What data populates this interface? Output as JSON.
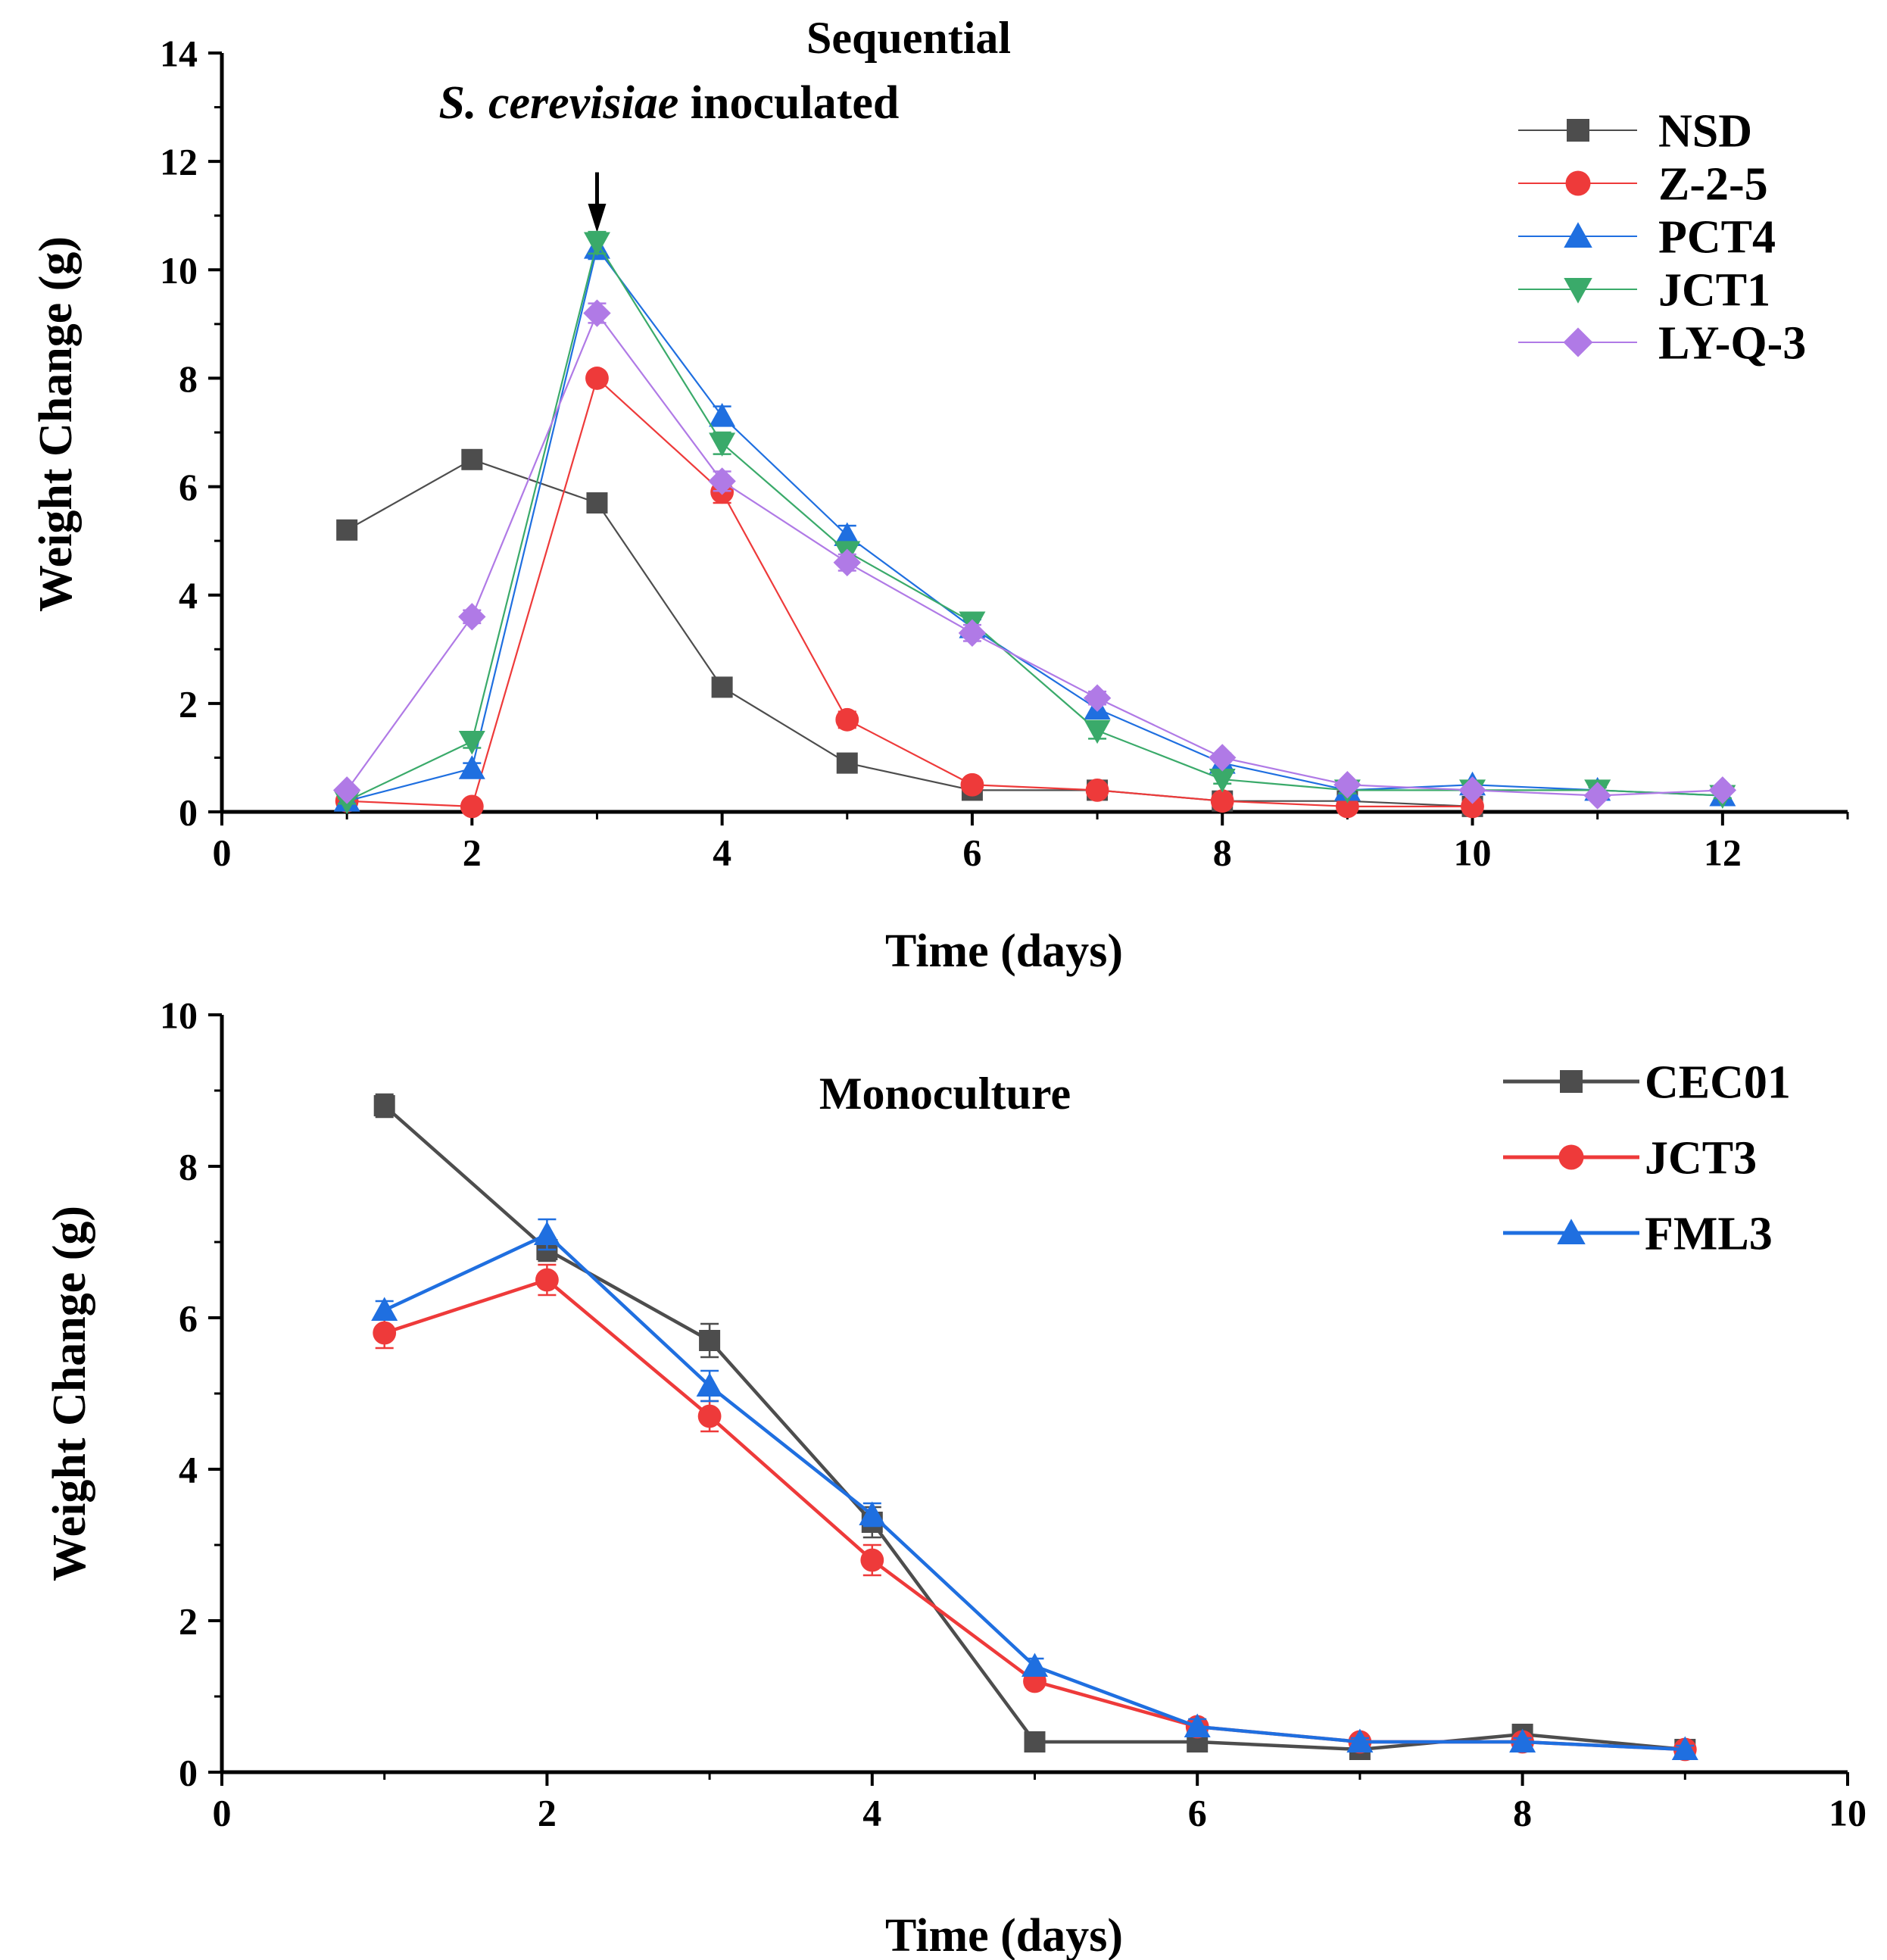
{
  "chart_data": [
    {
      "type": "line",
      "title": "Sequential",
      "xlabel": "Time (days)",
      "ylabel": "Weight Change (g)",
      "xlim": [
        0,
        13
      ],
      "ylim": [
        0,
        14
      ],
      "xticks": [
        0,
        2,
        4,
        6,
        8,
        10,
        12
      ],
      "yticks": [
        0,
        2,
        4,
        6,
        8,
        10,
        12,
        14
      ],
      "legend_position": "top-right",
      "annotation": {
        "italic_text": "S. cerevisiae",
        "text": " inoculated",
        "x": 3,
        "y_text": 12.8,
        "arrow_from": 11.8,
        "arrow_to": 10.8
      },
      "series": [
        {
          "name": "NSD",
          "color": "#4d4d4d",
          "marker": "square",
          "x": [
            1,
            2,
            3,
            4,
            5,
            6,
            7,
            8,
            9,
            10
          ],
          "y": [
            5.2,
            6.5,
            5.7,
            2.3,
            0.9,
            0.4,
            0.4,
            0.2,
            0.2,
            0.1
          ],
          "err": [
            0.1,
            0.12,
            0.12,
            0.12,
            0.08,
            0.06,
            0.06,
            0.04,
            0.04,
            0.03
          ]
        },
        {
          "name": "Z-2-5",
          "color": "#ee3a3a",
          "marker": "circle",
          "x": [
            1,
            2,
            3,
            4,
            5,
            6,
            7,
            8,
            9,
            10
          ],
          "y": [
            0.2,
            0.1,
            8.0,
            5.9,
            1.7,
            0.5,
            0.4,
            0.2,
            0.1,
            0.1
          ],
          "err": [
            0.05,
            0.05,
            0.12,
            0.2,
            0.15,
            0.1,
            0.06,
            0.05,
            0.04,
            0.03
          ]
        },
        {
          "name": "PCT4",
          "color": "#1f6fe0",
          "marker": "triangle-up",
          "x": [
            1,
            2,
            3,
            4,
            5,
            6,
            7,
            8,
            9,
            10,
            11,
            12
          ],
          "y": [
            0.2,
            0.8,
            10.4,
            7.3,
            5.1,
            3.4,
            1.9,
            0.9,
            0.4,
            0.5,
            0.4,
            0.3
          ],
          "err": [
            0.05,
            0.1,
            0.2,
            0.18,
            0.18,
            0.15,
            0.12,
            0.08,
            0.06,
            0.06,
            0.05,
            0.05
          ]
        },
        {
          "name": "JCT1",
          "color": "#3aaa6a",
          "marker": "triangle-down",
          "x": [
            1,
            2,
            3,
            4,
            5,
            6,
            7,
            8,
            9,
            10,
            11,
            12
          ],
          "y": [
            0.2,
            1.3,
            10.5,
            6.8,
            4.8,
            3.5,
            1.5,
            0.6,
            0.4,
            0.4,
            0.4,
            0.3
          ],
          "err": [
            0.05,
            0.12,
            0.2,
            0.2,
            0.18,
            0.15,
            0.15,
            0.08,
            0.06,
            0.05,
            0.05,
            0.05
          ]
        },
        {
          "name": "LY-Q-3",
          "color": "#b07ae6",
          "marker": "diamond",
          "x": [
            1,
            2,
            3,
            4,
            5,
            6,
            7,
            8,
            9,
            10,
            11,
            12
          ],
          "y": [
            0.4,
            3.6,
            9.2,
            6.1,
            4.6,
            3.3,
            2.1,
            1.0,
            0.5,
            0.4,
            0.3,
            0.4
          ],
          "err": [
            0.05,
            0.12,
            0.18,
            0.18,
            0.15,
            0.15,
            0.12,
            0.08,
            0.06,
            0.05,
            0.05,
            0.05
          ]
        }
      ]
    },
    {
      "type": "line",
      "title": "Monoculture",
      "xlabel": "Time (days)",
      "ylabel": "Weight Change (g)",
      "xlim": [
        0,
        10
      ],
      "ylim": [
        0,
        10
      ],
      "xticks": [
        0,
        2,
        4,
        6,
        8,
        10
      ],
      "yticks": [
        0,
        2,
        4,
        6,
        8,
        10
      ],
      "legend_position": "top-right",
      "series": [
        {
          "name": "CEC01",
          "color": "#4d4d4d",
          "marker": "square",
          "x": [
            1,
            2,
            3,
            4,
            5,
            6,
            7,
            8,
            9
          ],
          "y": [
            8.8,
            6.9,
            5.7,
            3.3,
            0.4,
            0.4,
            0.3,
            0.5,
            0.3
          ],
          "err": [
            0.15,
            0.15,
            0.22,
            0.2,
            0.06,
            0.05,
            0.05,
            0.05,
            0.05
          ]
        },
        {
          "name": "JCT3",
          "color": "#ee3a3a",
          "marker": "circle",
          "x": [
            1,
            2,
            3,
            4,
            5,
            6,
            7,
            8,
            9
          ],
          "y": [
            5.8,
            6.5,
            4.7,
            2.8,
            1.2,
            0.6,
            0.4,
            0.4,
            0.3
          ],
          "err": [
            0.2,
            0.2,
            0.2,
            0.2,
            0.08,
            0.06,
            0.05,
            0.05,
            0.05
          ]
        },
        {
          "name": "FML3",
          "color": "#1f6fe0",
          "marker": "triangle-up",
          "x": [
            1,
            2,
            3,
            4,
            5,
            6,
            7,
            8,
            9
          ],
          "y": [
            6.1,
            7.1,
            5.1,
            3.4,
            1.4,
            0.6,
            0.4,
            0.4,
            0.3
          ],
          "err": [
            0.12,
            0.2,
            0.2,
            0.15,
            0.1,
            0.1,
            0.05,
            0.05,
            0.05
          ]
        }
      ]
    }
  ]
}
